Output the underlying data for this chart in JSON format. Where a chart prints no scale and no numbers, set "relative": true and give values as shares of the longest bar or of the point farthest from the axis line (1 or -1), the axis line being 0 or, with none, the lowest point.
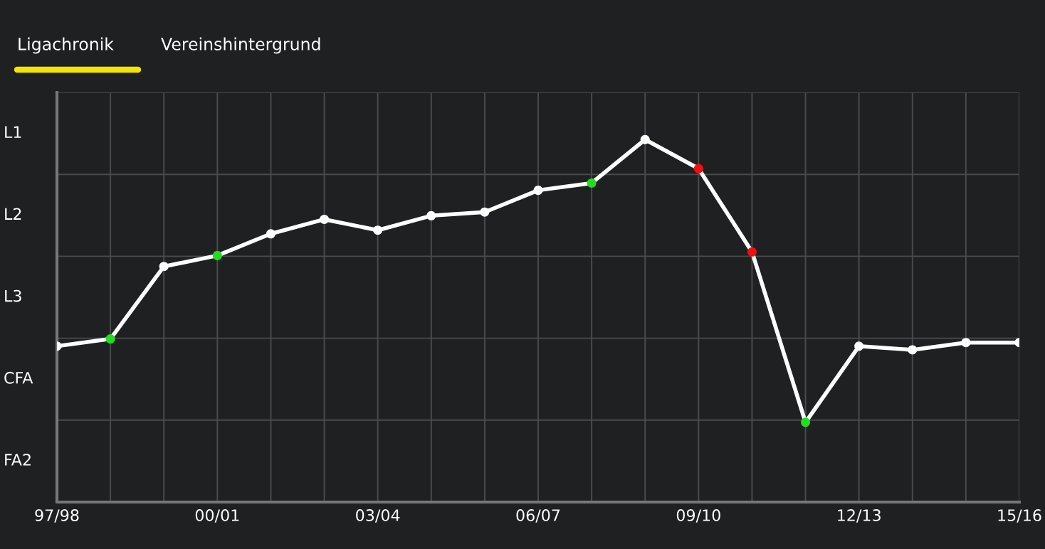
{
  "chart_data": {
    "type": "line",
    "annotations": [
      "Ligachronik",
      "Vereinshintergrund",
      "L1",
      "L2",
      "L3",
      "CFA",
      "FA2"
    ],
    "categories": [
      "97/98",
      null,
      null,
      "00/01",
      null,
      null,
      "03/04",
      null,
      null,
      "06/07",
      null,
      null,
      "09/10",
      null,
      null,
      "12/13",
      null,
      null,
      "15/16"
    ],
    "relative": true,
    "series": [
      {
        "color": "#ffffff",
        "values": [
          0.43,
          0.45,
          0.65,
          0.68,
          0.74,
          0.78,
          0.75,
          0.79,
          0.8,
          0.86,
          0.88,
          1,
          0.92,
          0.69,
          0.22,
          0.43,
          0.42,
          0.44,
          0.44
        ],
        "colors": [
          "#ffffff",
          "#22dd22",
          "#ffffff",
          "#22dd22",
          "#ffffff",
          "#ffffff",
          "#ffffff",
          "#ffffff",
          "#ffffff",
          "#ffffff",
          "#22dd22",
          "#ffffff",
          "#ee1111",
          "#ee1111",
          "#22dd22",
          "#ffffff",
          "#ffffff",
          "#ffffff",
          "#ffffff"
        ]
      }
    ],
    "grid": true,
    "marker": "circle",
    "line_style": "solid"
  }
}
